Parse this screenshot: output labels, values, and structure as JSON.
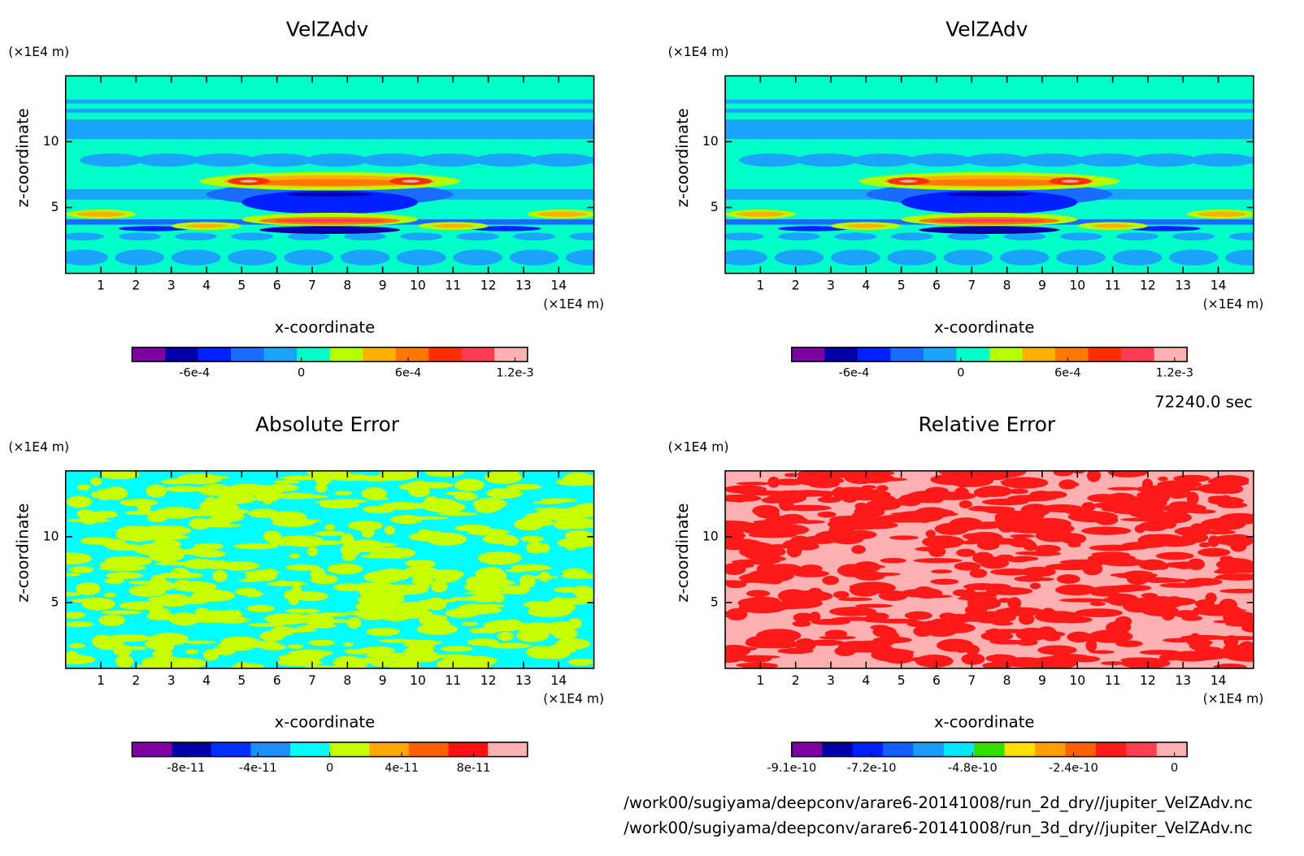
{
  "chart_data": [
    {
      "type": "contour",
      "title": "VelZAdv",
      "xlabel": "x-coordinate",
      "ylabel": "z-coordinate",
      "xunit": "(×1E4 m)",
      "yunit": "(×1E4 m)",
      "xlim": [
        0,
        15
      ],
      "ylim": [
        0,
        15
      ],
      "xticks": [
        1,
        2,
        3,
        4,
        5,
        6,
        7,
        8,
        9,
        10,
        11,
        12,
        13,
        14
      ],
      "yticks": [
        5,
        10
      ],
      "colorbar": {
        "colors": [
          "#7f00a0",
          "#0000a8",
          "#0020ff",
          "#1a6cff",
          "#1aa4ff",
          "#00ffc8",
          "#b4ff00",
          "#ffb000",
          "#ff7800",
          "#ff3000",
          "#ff3c50",
          "#ffb0b0"
        ],
        "clim": [
          -0.00095,
          0.00127
        ],
        "ticks": [
          {
            "value": -0.0006,
            "label": "-6e-4"
          },
          0,
          {
            "value": 0.0006,
            "label": "6e-4"
          },
          {
            "value": 0.0012,
            "label": "1.2e-3"
          }
        ]
      }
    },
    {
      "type": "contour",
      "title": "VelZAdv",
      "xlabel": "x-coordinate",
      "ylabel": "z-coordinate",
      "xunit": "(×1E4 m)",
      "yunit": "(×1E4 m)",
      "xlim": [
        0,
        15
      ],
      "ylim": [
        0,
        15
      ],
      "xticks": [
        1,
        2,
        3,
        4,
        5,
        6,
        7,
        8,
        9,
        10,
        11,
        12,
        13,
        14
      ],
      "yticks": [
        5,
        10
      ],
      "colorbar": {
        "colors": [
          "#7f00a0",
          "#0000a8",
          "#0020ff",
          "#1a6cff",
          "#1aa4ff",
          "#00ffc8",
          "#b4ff00",
          "#ffb000",
          "#ff7800",
          "#ff3000",
          "#ff3c50",
          "#ffb0b0"
        ],
        "clim": [
          -0.00095,
          0.00127
        ],
        "ticks": [
          {
            "value": -0.0006,
            "label": "-6e-4"
          },
          0,
          {
            "value": 0.0006,
            "label": "6e-4"
          },
          {
            "value": 0.0012,
            "label": "1.2e-3"
          }
        ]
      }
    },
    {
      "type": "contour",
      "title": "Absolute Error",
      "xlabel": "x-coordinate",
      "ylabel": "z-coordinate",
      "xunit": "(×1E4 m)",
      "yunit": "(×1E4 m)",
      "xlim": [
        0,
        15
      ],
      "ylim": [
        0,
        15
      ],
      "xticks": [
        1,
        2,
        3,
        4,
        5,
        6,
        7,
        8,
        9,
        10,
        11,
        12,
        13,
        14
      ],
      "yticks": [
        5,
        10
      ],
      "colorbar": {
        "colors": [
          "#7f00a0",
          "#0000a8",
          "#0030ff",
          "#1a90ff",
          "#00ffff",
          "#c8ff00",
          "#ffa800",
          "#ff6000",
          "#ff1010",
          "#ffb0b0"
        ],
        "clim": [
          -1.1e-10,
          1.1e-10
        ],
        "ticks": [
          {
            "value": -8e-11,
            "label": "-8e-11"
          },
          {
            "value": -4e-11,
            "label": "-4e-11"
          },
          0,
          {
            "value": 4e-11,
            "label": "4e-11"
          },
          {
            "value": 8e-11,
            "label": "8e-11"
          }
        ]
      }
    },
    {
      "type": "contour",
      "title": "Relative Error",
      "xlabel": "x-coordinate",
      "ylabel": "z-coordinate",
      "xunit": "(×1E4 m)",
      "yunit": "(×1E4 m)",
      "xlim": [
        0,
        15
      ],
      "ylim": [
        0,
        15
      ],
      "xticks": [
        1,
        2,
        3,
        4,
        5,
        6,
        7,
        8,
        9,
        10,
        11,
        12,
        13,
        14
      ],
      "yticks": [
        5,
        10
      ],
      "colorbar": {
        "colors": [
          "#7f00a0",
          "#0000a8",
          "#0020ff",
          "#1060ff",
          "#1a9cff",
          "#00e8ff",
          "#30e000",
          "#ffe000",
          "#ffa000",
          "#ff6000",
          "#ff1a1a",
          "#ff4050",
          "#ffb0b0"
        ],
        "clim": [
          -9.1e-10,
          3e-11
        ],
        "ticks": [
          {
            "value": -9.1e-10,
            "label": "-9.1e-10"
          },
          {
            "value": -7.2e-10,
            "label": "-7.2e-10"
          },
          {
            "value": -4.8e-10,
            "label": "-4.8e-10"
          },
          {
            "value": -2.4e-10,
            "label": "-2.4e-10"
          },
          0
        ]
      }
    }
  ],
  "annotations": {
    "time": "72240.0 sec",
    "files": [
      "/work00/sugiyama/deepconv/arare6-20141008/run_2d_dry//jupiter_VelZAdv.nc",
      "/work00/sugiyama/deepconv/arare6-20141008/run_3d_dry//jupiter_VelZAdv.nc"
    ]
  }
}
